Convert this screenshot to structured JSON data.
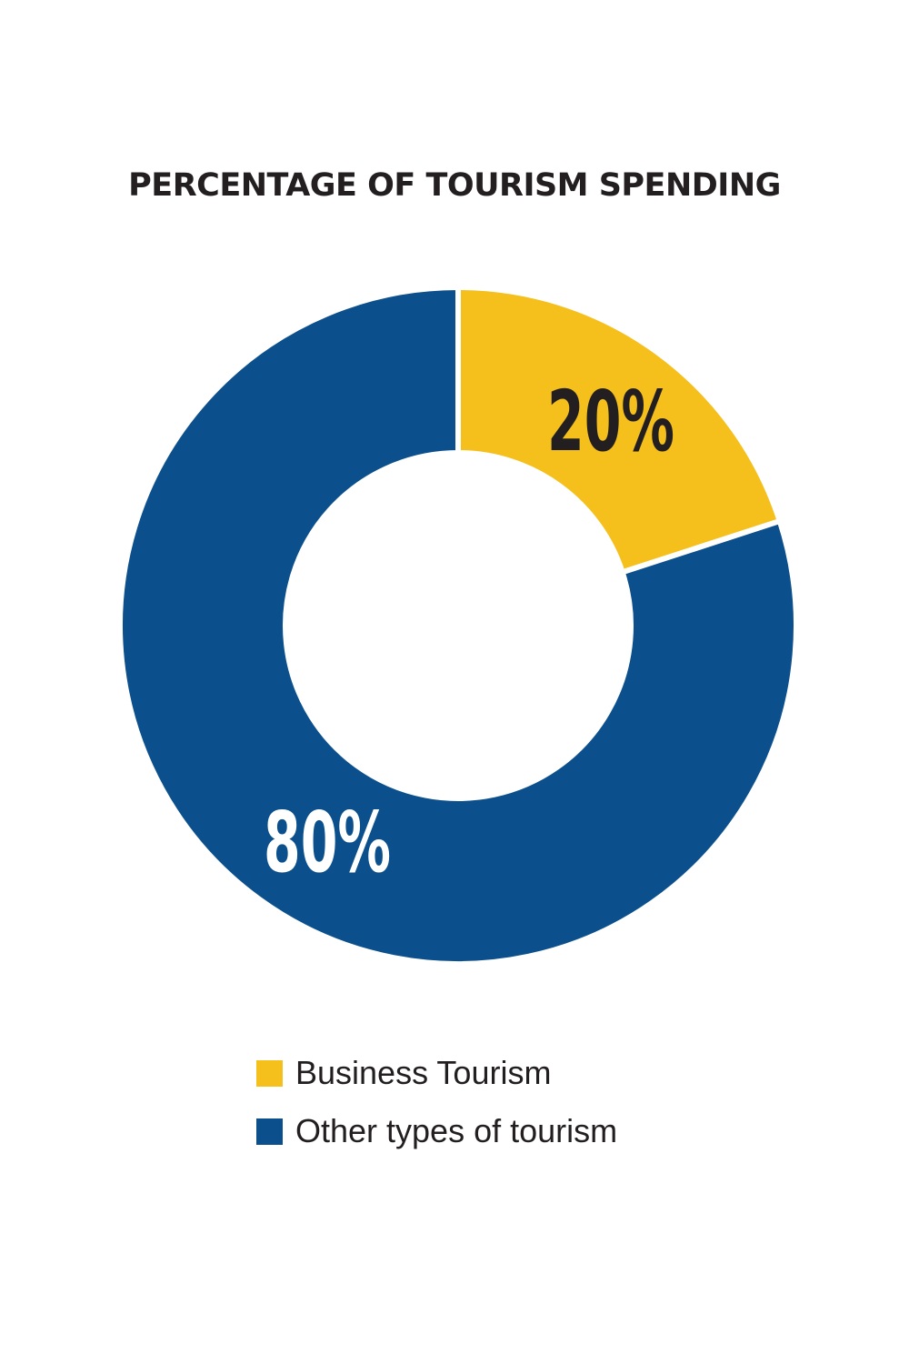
{
  "chart_data": {
    "type": "pie",
    "title": "PERCENTAGE OF TOURISM SPENDING",
    "donut": true,
    "categories": [
      "Business Tourism",
      "Other types of tourism"
    ],
    "values": [
      20,
      80
    ],
    "value_labels": [
      "20%",
      "80%"
    ],
    "colors": [
      "#f5bf1c",
      "#0b4f8c"
    ],
    "label_colors": [
      "#231f20",
      "#ffffff"
    ],
    "legend_position": "bottom"
  }
}
